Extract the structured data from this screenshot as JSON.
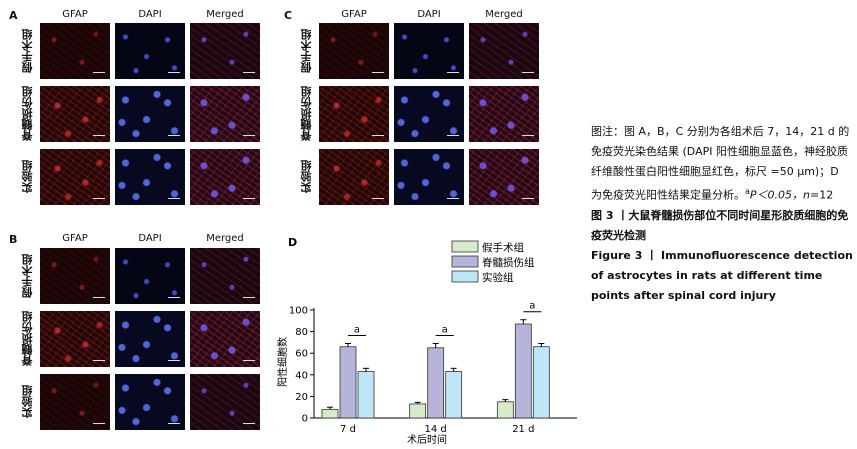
{
  "figure": {
    "panels": [
      {
        "label": "A",
        "columns": [
          "GFAP",
          "DAPI",
          "Merged"
        ],
        "rows": [
          "假手术组",
          "脊髓损伤组",
          "实验组"
        ]
      },
      {
        "label": "B",
        "columns": [
          "GFAP",
          "DAPI",
          "Merged"
        ],
        "rows": [
          "假手术组",
          "脊髓损伤组",
          "实验组"
        ]
      },
      {
        "label": "C",
        "columns": [
          "GFAP",
          "DAPI",
          "Merged"
        ],
        "rows": [
          "假手术组",
          "脊髓损伤组",
          "实验组"
        ]
      }
    ]
  },
  "caption": {
    "note_prefix": "图注：",
    "note_text": "图 A，B，C 分别为各组术后 7，14，21 d 的免疫荧光染色结果 (DAPI 阳性细胞显蓝色，神经胶质纤维酸性蛋白阳性细胞显红色，标尺 =50 μm)；D 为免疫荧光阳性结果定量分析。",
    "stat_sup": "a",
    "stat_text": "P＜0.05，",
    "n_label": "n",
    "n_value": "=12",
    "title_cn": "图 3 丨大鼠脊髓损伤部位不同时间星形胶质细胞的免疫荧光检测",
    "title_en": "Figure 3 丨 Immunofluorescence detection of astrocytes in rats at different time points after spinal cord injury"
  },
  "chart_data": {
    "type": "bar",
    "panel_label": "D",
    "categories": [
      "7 d",
      "14 d",
      "21 d"
    ],
    "xlabel": "术后时间",
    "ylabel": "阳性细胞数",
    "ylim": [
      0,
      100
    ],
    "yticks": [
      0,
      20,
      40,
      60,
      80,
      100
    ],
    "legend_placement": "top-right",
    "series": [
      {
        "name": "假手术组",
        "color": "#d6ebc9",
        "values": [
          8,
          13,
          15
        ],
        "errors": [
          2,
          1.5,
          2
        ]
      },
      {
        "name": "脊髓损伤组",
        "color": "#b7b4da",
        "values": [
          66,
          65,
          87
        ],
        "errors": [
          3,
          4,
          4
        ]
      },
      {
        "name": "实验组",
        "color": "#bfe6f7",
        "values": [
          43,
          43,
          66
        ],
        "errors": [
          3,
          3,
          3
        ]
      }
    ],
    "significance": [
      {
        "category": "7 d",
        "label": "a"
      },
      {
        "category": "14 d",
        "label": "a"
      },
      {
        "category": "21 d",
        "label": "a"
      }
    ]
  }
}
